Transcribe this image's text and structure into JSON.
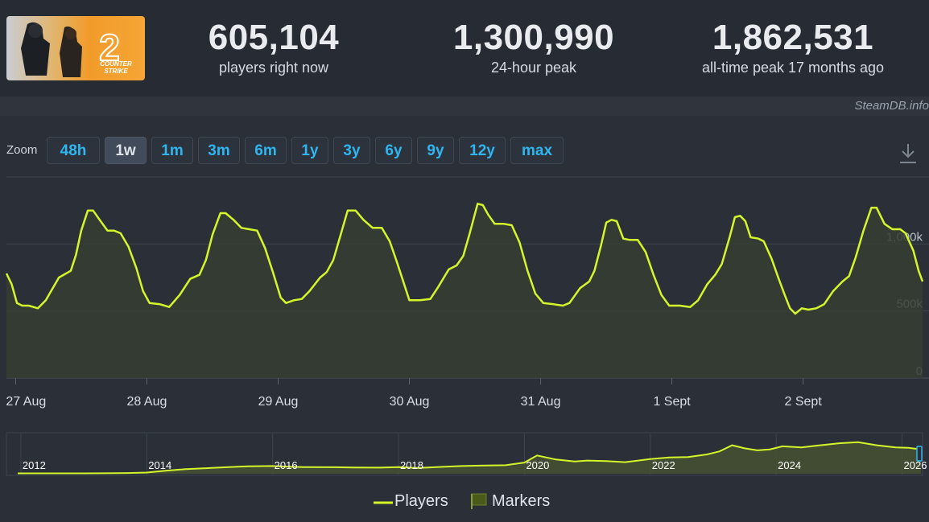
{
  "stats": [
    {
      "value": "605,104",
      "label": "players right now"
    },
    {
      "value": "1,300,990",
      "label": "24-hour peak"
    },
    {
      "value": "1,862,531",
      "label": "all-time peak 17 months ago"
    }
  ],
  "logo": {
    "game_text_1": "COUNTER",
    "game_text_2": "STRIKE",
    "number": "2"
  },
  "credit": "SteamDB.info",
  "zoom": {
    "label": "Zoom",
    "buttons": [
      "48h",
      "1w",
      "1m",
      "3m",
      "6m",
      "1y",
      "3y",
      "6y",
      "9y",
      "12y",
      "max"
    ],
    "active": "1w"
  },
  "colors": {
    "line": "#d4f52a",
    "fill": "#3b4330",
    "background": "#2b3038",
    "zoom_text": "#2fb5f0"
  },
  "chart_data": [
    {
      "type": "line",
      "series": [
        {
          "name": "Players"
        }
      ],
      "x_ticks": [
        "27 Aug",
        "28 Aug",
        "29 Aug",
        "30 Aug",
        "31 Aug",
        "1 Sept",
        "2 Sept"
      ],
      "y_ticks": [
        {
          "value": 0,
          "label": "0"
        },
        {
          "value": 500000,
          "label": "500k"
        },
        {
          "value": 1000000,
          "label": "1,000k"
        }
      ],
      "ylim": [
        0,
        1500000
      ],
      "xlim": [
        -0.07,
        6.91
      ],
      "grid": true,
      "points": [
        [
          -0.07,
          780000
        ],
        [
          -0.03,
          700000
        ],
        [
          0.01,
          560000
        ],
        [
          0.05,
          540000
        ],
        [
          0.1,
          540000
        ],
        [
          0.17,
          520000
        ],
        [
          0.23,
          580000
        ],
        [
          0.33,
          750000
        ],
        [
          0.42,
          800000
        ],
        [
          0.46,
          920000
        ],
        [
          0.5,
          1100000
        ],
        [
          0.55,
          1250000
        ],
        [
          0.59,
          1250000
        ],
        [
          0.64,
          1180000
        ],
        [
          0.7,
          1100000
        ],
        [
          0.75,
          1100000
        ],
        [
          0.8,
          1080000
        ],
        [
          0.86,
          980000
        ],
        [
          0.92,
          820000
        ],
        [
          0.97,
          650000
        ],
        [
          1.02,
          560000
        ],
        [
          1.1,
          550000
        ],
        [
          1.17,
          530000
        ],
        [
          1.25,
          620000
        ],
        [
          1.33,
          740000
        ],
        [
          1.4,
          770000
        ],
        [
          1.45,
          880000
        ],
        [
          1.5,
          1070000
        ],
        [
          1.56,
          1230000
        ],
        [
          1.6,
          1230000
        ],
        [
          1.66,
          1180000
        ],
        [
          1.72,
          1120000
        ],
        [
          1.78,
          1110000
        ],
        [
          1.84,
          1100000
        ],
        [
          1.9,
          970000
        ],
        [
          1.96,
          790000
        ],
        [
          2.02,
          600000
        ],
        [
          2.06,
          560000
        ],
        [
          2.12,
          580000
        ],
        [
          2.18,
          590000
        ],
        [
          2.24,
          650000
        ],
        [
          2.32,
          750000
        ],
        [
          2.37,
          790000
        ],
        [
          2.42,
          880000
        ],
        [
          2.48,
          1080000
        ],
        [
          2.53,
          1250000
        ],
        [
          2.59,
          1250000
        ],
        [
          2.65,
          1180000
        ],
        [
          2.72,
          1120000
        ],
        [
          2.79,
          1120000
        ],
        [
          2.85,
          1020000
        ],
        [
          2.9,
          880000
        ],
        [
          2.95,
          730000
        ],
        [
          3.0,
          580000
        ],
        [
          3.08,
          580000
        ],
        [
          3.16,
          590000
        ],
        [
          3.22,
          680000
        ],
        [
          3.3,
          810000
        ],
        [
          3.36,
          840000
        ],
        [
          3.41,
          910000
        ],
        [
          3.46,
          1080000
        ],
        [
          3.52,
          1300000
        ],
        [
          3.56,
          1290000
        ],
        [
          3.6,
          1220000
        ],
        [
          3.65,
          1150000
        ],
        [
          3.72,
          1150000
        ],
        [
          3.78,
          1140000
        ],
        [
          3.84,
          1010000
        ],
        [
          3.9,
          800000
        ],
        [
          3.96,
          630000
        ],
        [
          4.02,
          560000
        ],
        [
          4.1,
          550000
        ],
        [
          4.17,
          540000
        ],
        [
          4.22,
          560000
        ],
        [
          4.3,
          670000
        ],
        [
          4.37,
          720000
        ],
        [
          4.41,
          800000
        ],
        [
          4.46,
          990000
        ],
        [
          4.5,
          1160000
        ],
        [
          4.54,
          1180000
        ],
        [
          4.58,
          1170000
        ],
        [
          4.63,
          1040000
        ],
        [
          4.68,
          1030000
        ],
        [
          4.74,
          1030000
        ],
        [
          4.8,
          940000
        ],
        [
          4.86,
          770000
        ],
        [
          4.92,
          620000
        ],
        [
          4.98,
          540000
        ],
        [
          5.06,
          540000
        ],
        [
          5.14,
          530000
        ],
        [
          5.2,
          580000
        ],
        [
          5.27,
          700000
        ],
        [
          5.33,
          770000
        ],
        [
          5.38,
          850000
        ],
        [
          5.44,
          1050000
        ],
        [
          5.48,
          1200000
        ],
        [
          5.52,
          1210000
        ],
        [
          5.56,
          1170000
        ],
        [
          5.6,
          1050000
        ],
        [
          5.66,
          1040000
        ],
        [
          5.7,
          1020000
        ],
        [
          5.76,
          890000
        ],
        [
          5.81,
          750000
        ],
        [
          5.86,
          620000
        ],
        [
          5.9,
          520000
        ],
        [
          5.94,
          480000
        ],
        [
          5.99,
          520000
        ],
        [
          6.04,
          510000
        ],
        [
          6.1,
          520000
        ],
        [
          6.16,
          550000
        ],
        [
          6.23,
          650000
        ],
        [
          6.3,
          720000
        ],
        [
          6.35,
          760000
        ],
        [
          6.4,
          900000
        ],
        [
          6.46,
          1100000
        ],
        [
          6.52,
          1270000
        ],
        [
          6.56,
          1270000
        ],
        [
          6.62,
          1150000
        ],
        [
          6.68,
          1110000
        ],
        [
          6.74,
          1110000
        ],
        [
          6.78,
          1080000
        ],
        [
          6.84,
          950000
        ],
        [
          6.88,
          800000
        ],
        [
          6.91,
          720000
        ]
      ]
    },
    {
      "type": "area",
      "series": [
        {
          "name": "Players"
        },
        {
          "name": "Markers"
        }
      ],
      "x_ticks": [
        "2012",
        "2014",
        "2016",
        "2018",
        "2020",
        "2022",
        "2024",
        "2026"
      ],
      "ylim": [
        0,
        1900000
      ],
      "xlim": [
        2011.95,
        2026.3
      ],
      "points": [
        [
          2011.95,
          20000
        ],
        [
          2013.0,
          20000
        ],
        [
          2013.3,
          25000
        ],
        [
          2013.7,
          35000
        ],
        [
          2014.0,
          60000
        ],
        [
          2014.3,
          150000
        ],
        [
          2014.6,
          220000
        ],
        [
          2015.0,
          280000
        ],
        [
          2015.3,
          330000
        ],
        [
          2015.6,
          370000
        ],
        [
          2016.0,
          380000
        ],
        [
          2016.3,
          340000
        ],
        [
          2016.5,
          330000
        ],
        [
          2017.0,
          320000
        ],
        [
          2017.3,
          310000
        ],
        [
          2017.7,
          300000
        ],
        [
          2018.0,
          330000
        ],
        [
          2018.3,
          280000
        ],
        [
          2018.6,
          330000
        ],
        [
          2019.0,
          380000
        ],
        [
          2019.3,
          400000
        ],
        [
          2019.7,
          420000
        ],
        [
          2020.0,
          550000
        ],
        [
          2020.2,
          900000
        ],
        [
          2020.5,
          700000
        ],
        [
          2020.8,
          600000
        ],
        [
          2021.0,
          650000
        ],
        [
          2021.3,
          620000
        ],
        [
          2021.6,
          570000
        ],
        [
          2022.0,
          720000
        ],
        [
          2022.3,
          800000
        ],
        [
          2022.6,
          820000
        ],
        [
          2022.9,
          950000
        ],
        [
          2023.1,
          1100000
        ],
        [
          2023.3,
          1400000
        ],
        [
          2023.5,
          1250000
        ],
        [
          2023.7,
          1150000
        ],
        [
          2023.9,
          1200000
        ],
        [
          2024.1,
          1350000
        ],
        [
          2024.4,
          1300000
        ],
        [
          2024.7,
          1400000
        ],
        [
          2025.0,
          1500000
        ],
        [
          2025.3,
          1550000
        ],
        [
          2025.6,
          1400000
        ],
        [
          2025.9,
          1300000
        ],
        [
          2026.1,
          1280000
        ],
        [
          2026.3,
          1200000
        ]
      ]
    }
  ],
  "legend": {
    "players": "Players",
    "markers": "Markers"
  }
}
